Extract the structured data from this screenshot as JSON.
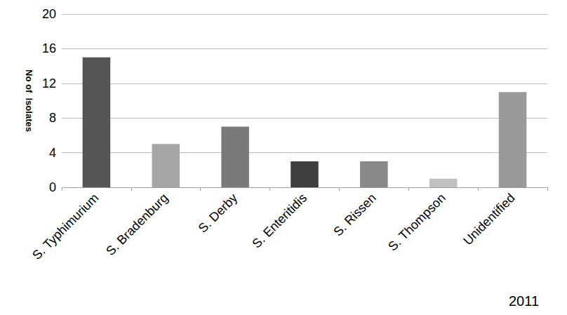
{
  "chart_data": {
    "type": "bar",
    "categories": [
      "S. Typhimurium",
      "S. Bradenburg",
      "S. Derby",
      "S. Enteritidis",
      "S. Rissen",
      "S. Thompson",
      "Unidentified"
    ],
    "values": [
      15,
      5,
      7,
      3,
      3,
      1,
      11
    ],
    "colors": [
      "#555555",
      "#a6a6a6",
      "#7a7a7a",
      "#3f3f3f",
      "#888888",
      "#c0c0c0",
      "#999999"
    ],
    "ylabel": "No of  Isolates",
    "annotation": "2011",
    "ylim": [
      0,
      20
    ],
    "yticks": [
      0,
      4,
      8,
      12,
      16,
      20
    ],
    "grid": true
  }
}
